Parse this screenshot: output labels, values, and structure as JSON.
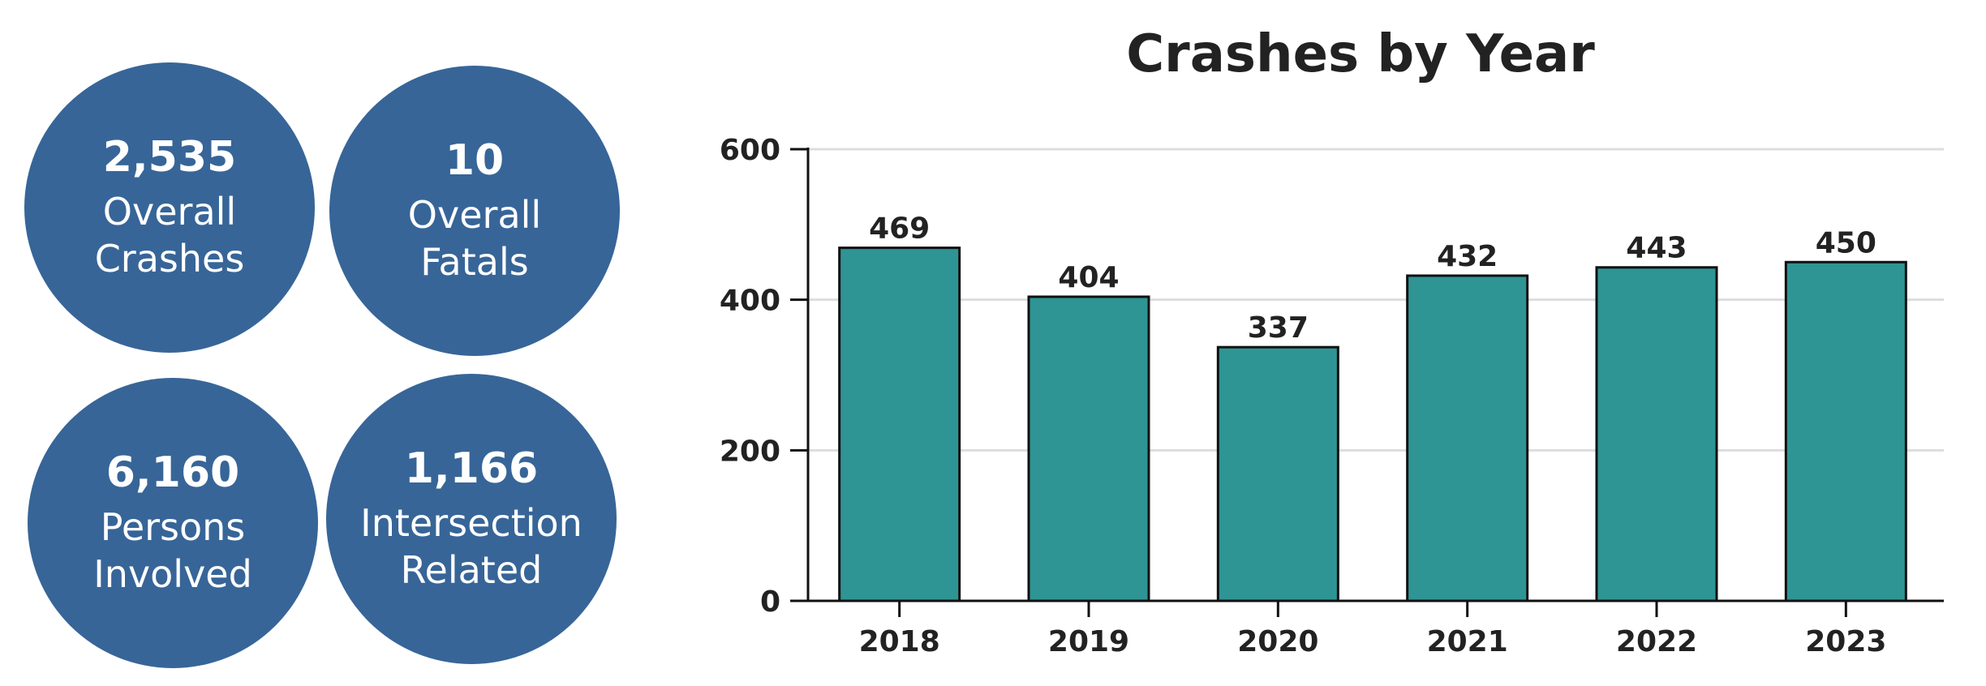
{
  "stats": [
    {
      "value": "2,535",
      "label_line1": "Overall",
      "label_line2": "Crashes"
    },
    {
      "value": "10",
      "label_line1": "Overall",
      "label_line2": "Fatals"
    },
    {
      "value": "6,160",
      "label_line1": "Persons",
      "label_line2": "Involved"
    },
    {
      "value": "1,166",
      "label_line1": "Intersection",
      "label_line2": "Related"
    }
  ],
  "colors": {
    "circle": "#376598",
    "bar": "#2e9594",
    "grid": "#dddddd",
    "axis": "#111111",
    "text": "#222222"
  },
  "chart_data": {
    "type": "bar",
    "title": "Crashes by Year",
    "xlabel": "",
    "ylabel": "",
    "categories": [
      "2018",
      "2019",
      "2020",
      "2021",
      "2022",
      "2023"
    ],
    "values": [
      469,
      404,
      337,
      432,
      443,
      450
    ],
    "ylim": [
      0,
      600
    ],
    "yticks": [
      0,
      200,
      400,
      600
    ],
    "grid": true,
    "data_labels": true
  }
}
